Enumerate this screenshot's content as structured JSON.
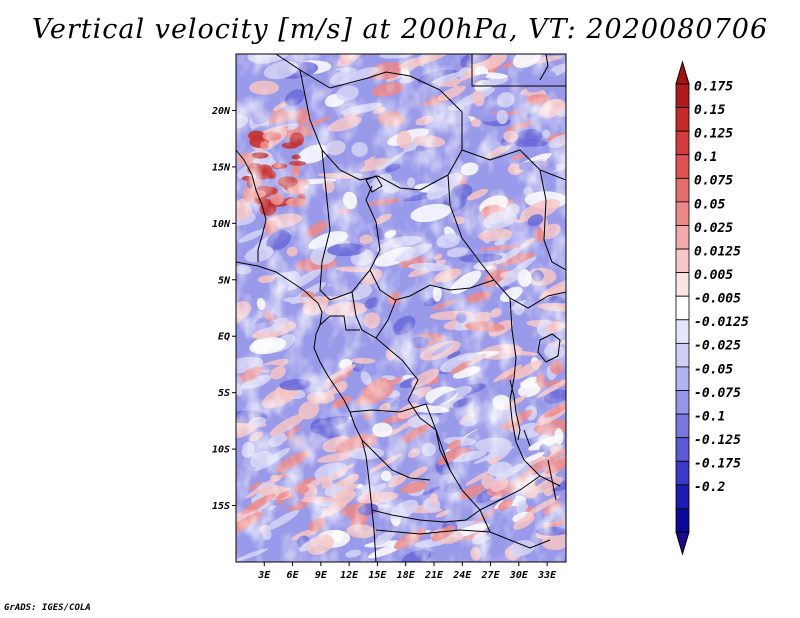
{
  "title": "Vertical velocity [m/s] at 200hPa, VT: 2020080706",
  "credit": "GrADS: IGES/COLA",
  "map": {
    "lon_range": [
      0,
      35
    ],
    "lat_range": [
      -20,
      25
    ],
    "y_ticks": [
      {
        "lat": 20,
        "label": "20N"
      },
      {
        "lat": 15,
        "label": "15N"
      },
      {
        "lat": 10,
        "label": "10N"
      },
      {
        "lat": 5,
        "label": "5N"
      },
      {
        "lat": 0,
        "label": "EQ"
      },
      {
        "lat": -5,
        "label": "5S"
      },
      {
        "lat": -10,
        "label": "10S"
      },
      {
        "lat": -15,
        "label": "15S"
      }
    ],
    "x_ticks": [
      {
        "lon": 3,
        "label": "3E"
      },
      {
        "lon": 6,
        "label": "6E"
      },
      {
        "lon": 9,
        "label": "9E"
      },
      {
        "lon": 12,
        "label": "12E"
      },
      {
        "lon": 15,
        "label": "15E"
      },
      {
        "lon": 18,
        "label": "18E"
      },
      {
        "lon": 21,
        "label": "21E"
      },
      {
        "lon": 24,
        "label": "24E"
      },
      {
        "lon": 27,
        "label": "27E"
      },
      {
        "lon": 30,
        "label": "30E"
      },
      {
        "lon": 33,
        "label": "33E"
      }
    ]
  },
  "colorbar": {
    "labels": [
      "0.175",
      "0.15",
      "0.125",
      "0.1",
      "0.075",
      "0.05",
      "0.025",
      "0.0125",
      "0.005",
      "-0.005",
      "-0.0125",
      "-0.025",
      "-0.05",
      "-0.075",
      "-0.1",
      "-0.125",
      "-0.175",
      "-0.2"
    ],
    "colors": [
      "#b01a1a",
      "#c42a2a",
      "#d23c3c",
      "#dd5252",
      "#e46d6d",
      "#ec8a8a",
      "#f3aaaa",
      "#f8c8c8",
      "#fbe4e4",
      "#ffffff",
      "#e6e6fb",
      "#cfcff6",
      "#b3b3f0",
      "#9696e8",
      "#7878df",
      "#5a5ad4",
      "#3a3ac6",
      "#1c1cb4",
      "#0a0a96"
    ],
    "top_arrow_color": "#a01414",
    "bottom_arrow_color": "#1a0a8c"
  },
  "field_colors": {
    "strong_up": "#c43030",
    "up": "#ec8a8a",
    "weak_up": "#f6c4c4",
    "neutral": "#ffffff",
    "weak_down": "#d4d4f6",
    "down": "#9a9aea",
    "strong_down": "#6a6ad8"
  }
}
